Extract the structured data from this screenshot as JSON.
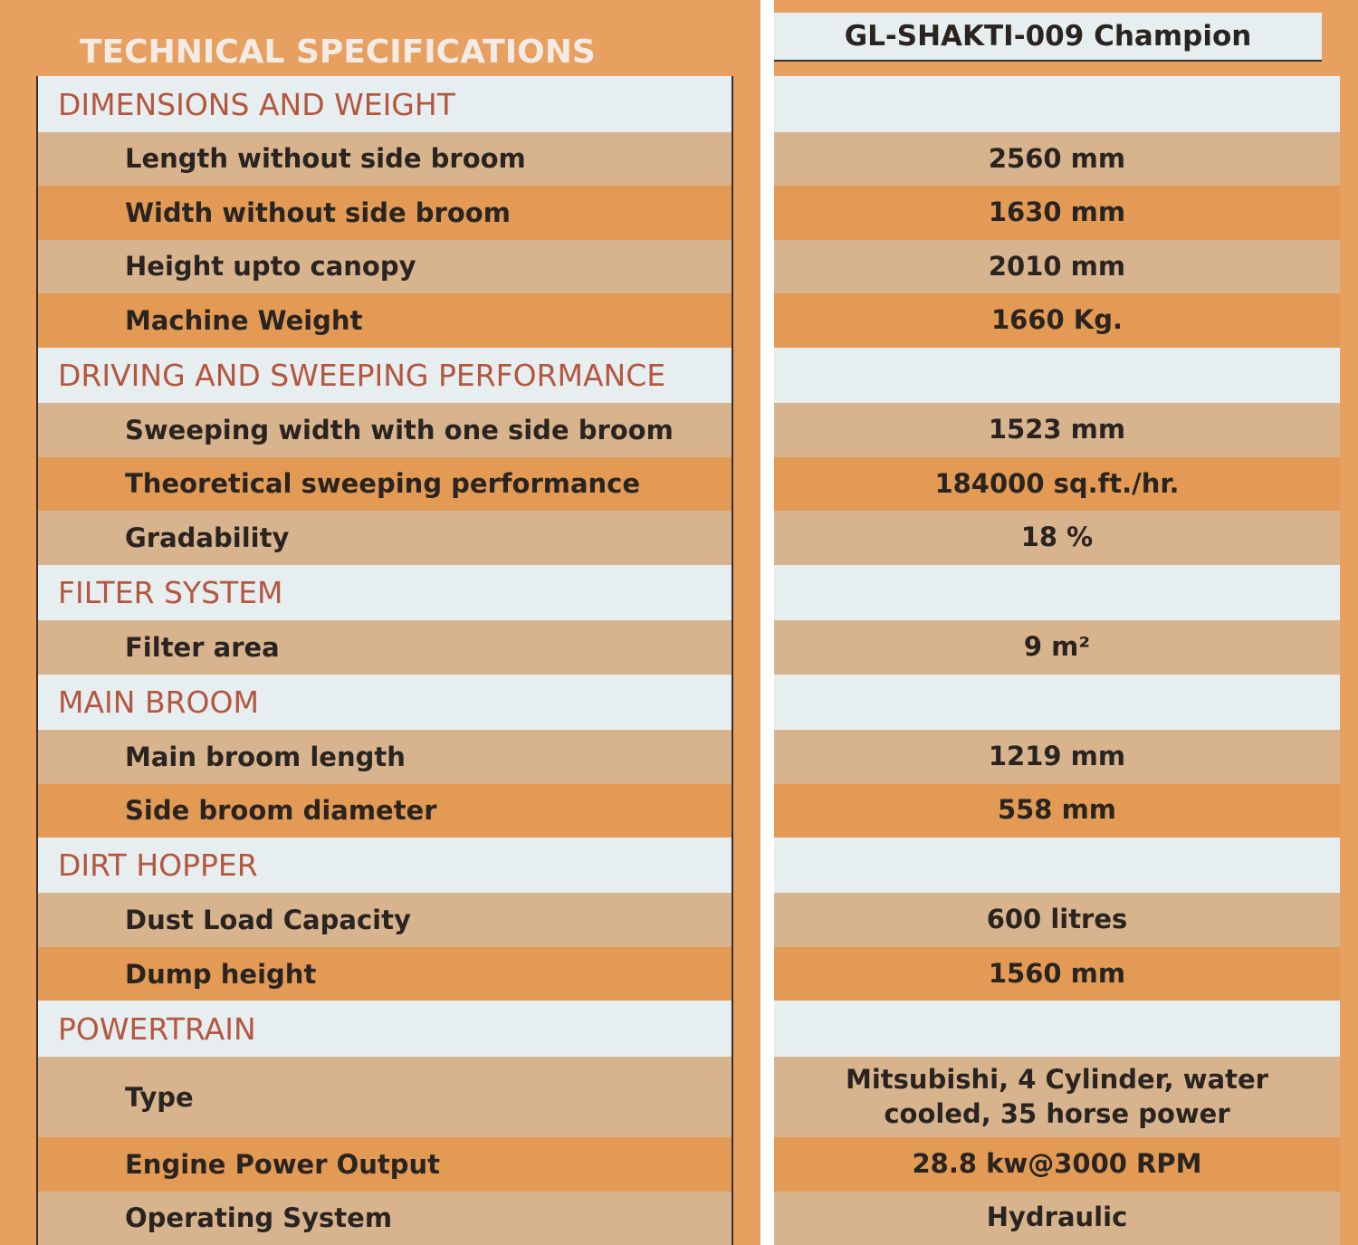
{
  "title": "TECHNICAL SPECIFICATIONS",
  "model": "GL-SHAKTI-009 Champion",
  "sections": [
    {
      "title": "DIMENSIONS AND WEIGHT",
      "rows": [
        {
          "label": "Length without side broom",
          "value": "2560 mm"
        },
        {
          "label": "Width without side broom",
          "value": "1630 mm"
        },
        {
          "label": "Height upto canopy",
          "value": "2010 mm"
        },
        {
          "label": "Machine Weight",
          "value": "1660 Kg."
        }
      ]
    },
    {
      "title": "DRIVING AND SWEEPING PERFORMANCE",
      "rows": [
        {
          "label": "Sweeping width with one side broom",
          "value": "1523 mm"
        },
        {
          "label": "Theoretical sweeping performance",
          "value": "184000 sq.ft./hr."
        },
        {
          "label": "Gradability",
          "value": "18 %"
        }
      ]
    },
    {
      "title": "FILTER SYSTEM",
      "rows": [
        {
          "label": "Filter area",
          "value": "9 m²"
        }
      ]
    },
    {
      "title": "MAIN BROOM",
      "rows": [
        {
          "label": "Main broom length",
          "value": "1219 mm"
        },
        {
          "label": "Side broom diameter",
          "value": "558 mm"
        }
      ]
    },
    {
      "title": "DIRT HOPPER",
      "rows": [
        {
          "label": "Dust Load Capacity",
          "value": "600 litres"
        },
        {
          "label": "Dump height",
          "value": "1560 mm"
        }
      ]
    },
    {
      "title": "POWERTRAIN",
      "rows": [
        {
          "label": "Type",
          "value": "Mitsubishi, 4 Cylinder, water cooled, 35 horse power"
        },
        {
          "label": "Engine Power Output",
          "value": "28.8 kw@3000 RPM"
        },
        {
          "label": "Operating System",
          "value": "Hydraulic"
        }
      ]
    }
  ]
}
